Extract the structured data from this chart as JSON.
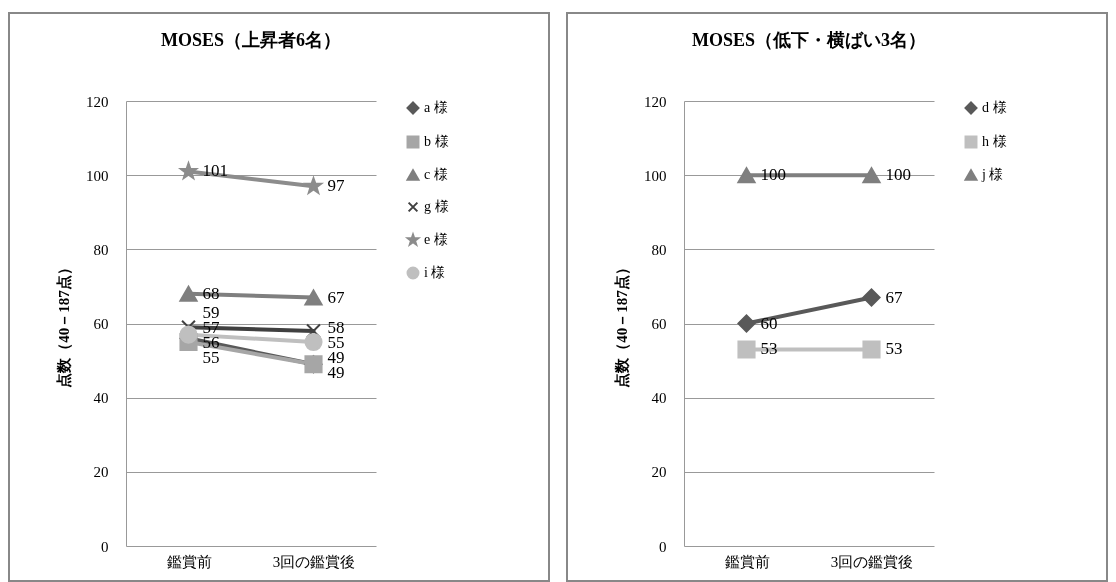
{
  "chart_data": [
    {
      "type": "line",
      "title": "MOSES（上昇者6名）",
      "ylabel": "点数（40－187点）",
      "categories": [
        "鑑賞前",
        "3回の鑑賞後"
      ],
      "ylim": [
        0,
        120
      ],
      "yticks": [
        0,
        20,
        40,
        60,
        80,
        100,
        120
      ],
      "grid": "y",
      "legend": "right",
      "data_labels": true,
      "series": [
        {
          "name": "a 様",
          "color": "#595959",
          "marker": "diamond",
          "values": [
            56,
            49
          ]
        },
        {
          "name": "b 様",
          "color": "#a6a6a6",
          "marker": "square",
          "values": [
            55,
            49
          ]
        },
        {
          "name": "c 様",
          "color": "#7f7f7f",
          "marker": "triangle",
          "values": [
            68,
            67
          ]
        },
        {
          "name": "g 様",
          "color": "#404040",
          "marker": "cross",
          "values": [
            59,
            58
          ]
        },
        {
          "name": "e 様",
          "color": "#8c8c8c",
          "marker": "star",
          "values": [
            101,
            97
          ]
        },
        {
          "name": "i 様",
          "color": "#bfbfbf",
          "marker": "circle",
          "values": [
            57,
            55
          ]
        }
      ]
    },
    {
      "type": "line",
      "title": "MOSES（低下・横ばい3名）",
      "ylabel": "点数（40－187点）",
      "categories": [
        "鑑賞前",
        "3回の鑑賞後"
      ],
      "ylim": [
        0,
        120
      ],
      "yticks": [
        0,
        20,
        40,
        60,
        80,
        100,
        120
      ],
      "grid": "y",
      "legend": "right",
      "data_labels": true,
      "series": [
        {
          "name": "d 様",
          "color": "#595959",
          "marker": "diamond",
          "values": [
            60,
            67
          ]
        },
        {
          "name": "h 様",
          "color": "#bfbfbf",
          "marker": "square",
          "values": [
            53,
            53
          ]
        },
        {
          "name": "j 様",
          "color": "#7f7f7f",
          "marker": "triangle",
          "values": [
            100,
            100
          ]
        }
      ]
    }
  ]
}
